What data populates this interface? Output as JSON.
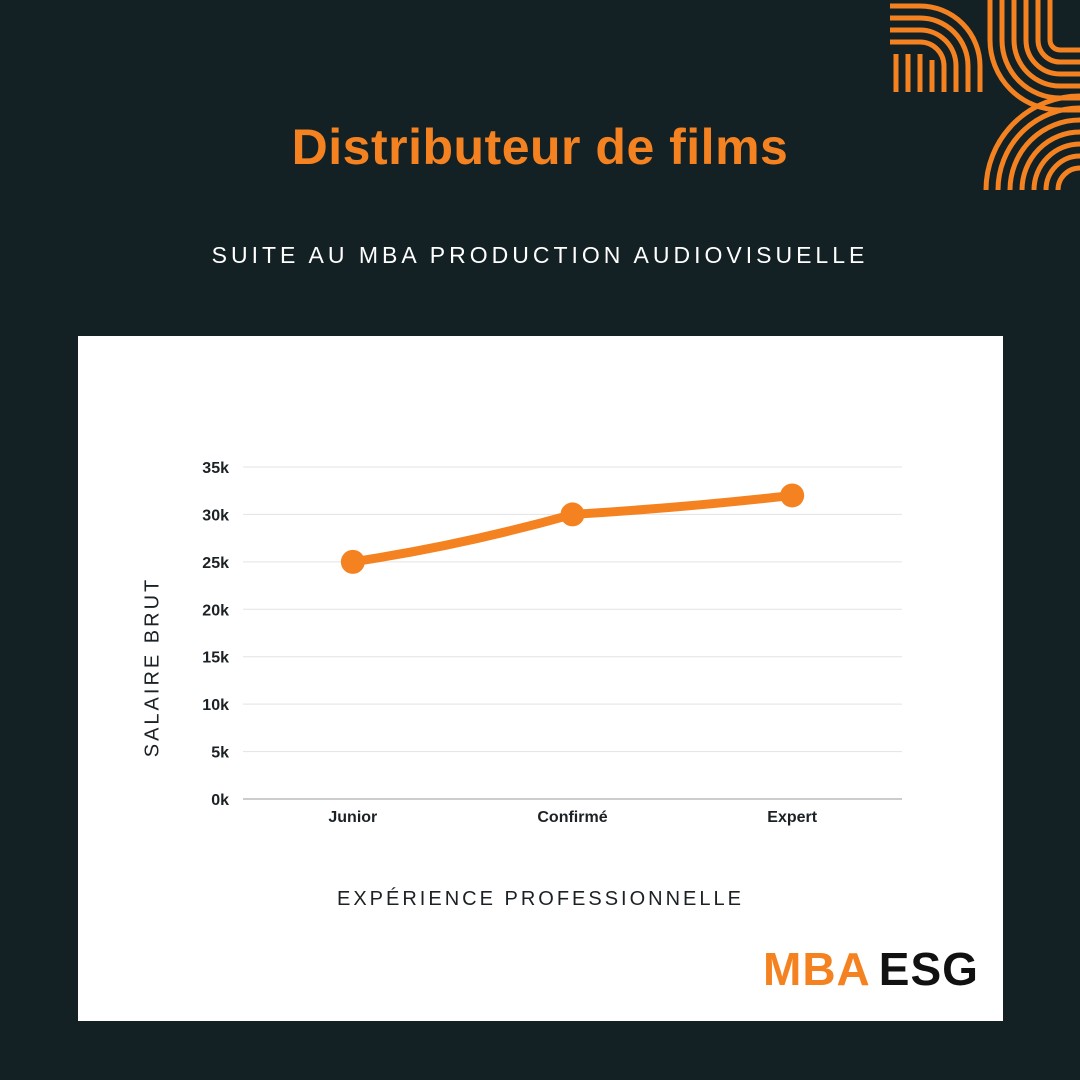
{
  "page": {
    "title": "Distributeur de films",
    "subtitle": "SUITE AU MBA PRODUCTION AUDIOVISUELLE"
  },
  "logo": {
    "part1": "MBA",
    "part2": "ESG"
  },
  "colors": {
    "background": "#132024",
    "accent": "#f58220",
    "card": "#ffffff",
    "text_dark": "#1b2124"
  },
  "chart_data": {
    "type": "line",
    "categories": [
      "Junior",
      "Confirmé",
      "Expert"
    ],
    "series": [
      {
        "values": [
          25000,
          30000,
          32000
        ]
      }
    ],
    "yticks": [
      0,
      5000,
      10000,
      15000,
      20000,
      25000,
      30000,
      35000
    ],
    "ytick_labels": [
      "0k",
      "5k",
      "10k",
      "15k",
      "20k",
      "25k",
      "30k",
      "35k"
    ],
    "ylim": [
      0,
      35000
    ],
    "xlabel": "EXPÉRIENCE PROFESSIONNELLE",
    "ylabel": "SALAIRE BRUT",
    "grid": true,
    "legend": "none"
  }
}
